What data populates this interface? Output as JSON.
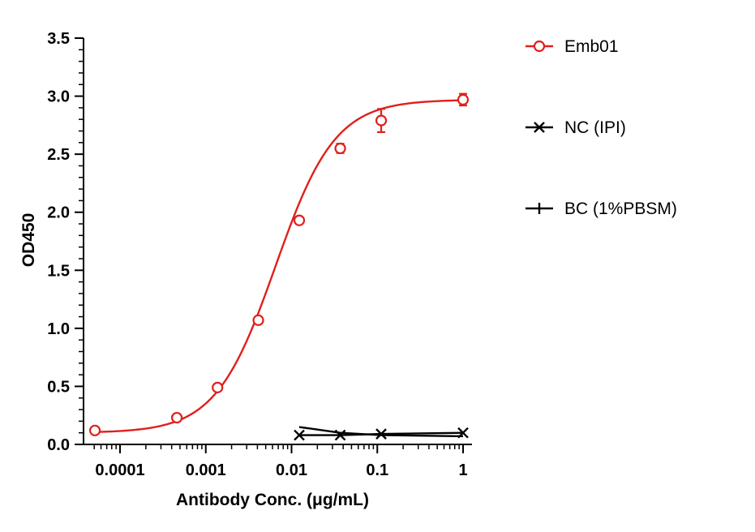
{
  "chart_data": {
    "type": "scatter",
    "title": "",
    "xlabel": "Antibody Conc. (μg/mL)",
    "ylabel": "OD450",
    "x_scale": "log",
    "xlim": [
      5e-05,
      1
    ],
    "ylim": [
      0,
      3.5
    ],
    "x_ticks": [
      {
        "value": 0.0001,
        "label": "0.0001"
      },
      {
        "value": 0.001,
        "label": "0.001"
      },
      {
        "value": 0.01,
        "label": "0.01"
      },
      {
        "value": 0.1,
        "label": "0.1"
      },
      {
        "value": 1,
        "label": "1"
      }
    ],
    "y_ticks": [
      {
        "value": 0,
        "label": "0.0"
      },
      {
        "value": 0.5,
        "label": "0.5"
      },
      {
        "value": 1.0,
        "label": "1.0"
      },
      {
        "value": 1.5,
        "label": "1.5"
      },
      {
        "value": 2.0,
        "label": "2.0"
      },
      {
        "value": 2.5,
        "label": "2.5"
      },
      {
        "value": 3.0,
        "label": "3.0"
      },
      {
        "value": 3.5,
        "label": "3.5"
      }
    ],
    "grid": false,
    "legend_position": "right",
    "series": [
      {
        "name": "Emb01",
        "color": "#e0201b",
        "marker": "circle",
        "fit": "4PL",
        "fit_params": {
          "bottom": 0.1,
          "top": 2.97,
          "ec50": 0.0065,
          "hill": 1.25
        },
        "x": [
          5.1e-05,
          0.00046,
          0.00137,
          0.0041,
          0.0123,
          0.037,
          0.111,
          1
        ],
        "y": [
          0.12,
          0.23,
          0.49,
          1.07,
          1.93,
          2.55,
          2.79,
          2.97
        ],
        "error": [
          0.01,
          0.02,
          0.02,
          0.02,
          0.03,
          0.04,
          0.1,
          0.05
        ]
      },
      {
        "name": "NC (IPI)",
        "color": "#000000",
        "marker": "x",
        "x": [
          0.0123,
          0.037,
          0.111,
          1
        ],
        "y": [
          0.08,
          0.08,
          0.09,
          0.1
        ]
      },
      {
        "name": "BC (1%PBSM)",
        "color": "#000000",
        "marker": "line",
        "x": [
          0.0123,
          0.037,
          0.111,
          1
        ],
        "y": [
          0.15,
          0.1,
          0.08,
          0.07
        ]
      }
    ]
  }
}
